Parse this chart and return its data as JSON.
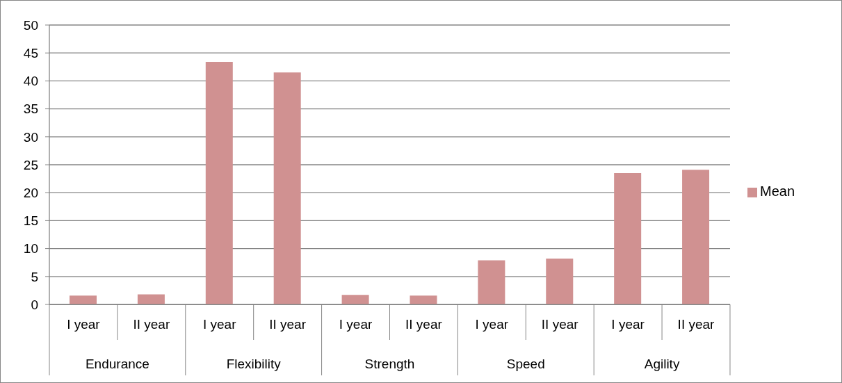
{
  "chart_data": {
    "type": "bar",
    "categories": [
      "I year",
      "II year",
      "I year",
      "II year",
      "I year",
      "II year",
      "I year",
      "II year",
      "I year",
      "II year"
    ],
    "series": [
      {
        "name": "Mean",
        "color": "#d09191",
        "values": [
          1.6,
          1.8,
          43.4,
          41.5,
          1.7,
          1.6,
          7.9,
          8.2,
          23.5,
          24.1
        ]
      }
    ],
    "ylim": [
      0,
      50
    ],
    "yticks": [
      0,
      5,
      10,
      15,
      20,
      25,
      30,
      35,
      40,
      45,
      50
    ],
    "grid": "y",
    "legend": "right",
    "annotations": [
      "Endurance",
      "Flexibility",
      "Strength",
      "Speed",
      "Agility"
    ]
  }
}
